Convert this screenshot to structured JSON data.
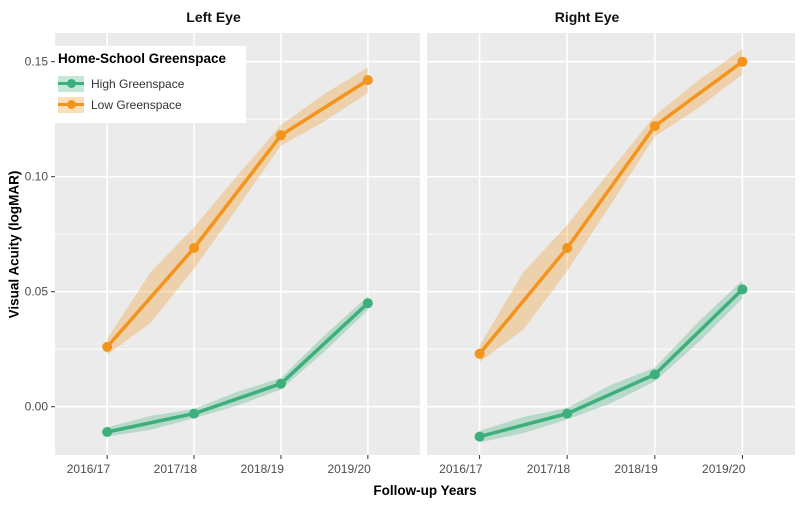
{
  "chart_data": {
    "type": "line",
    "facet_variable": "Eye",
    "xlabel": "Follow-up Years",
    "ylabel": "Visual Acuity (logMAR)",
    "categories": [
      "2016/17",
      "2017/18",
      "2018/19",
      "2019/20"
    ],
    "y_ticks": [
      {
        "value": 0.0,
        "label": "0.00"
      },
      {
        "value": 0.05,
        "label": "0.05"
      },
      {
        "value": 0.1,
        "label": "0.10"
      },
      {
        "value": 0.15,
        "label": "0.15"
      }
    ],
    "y_minor": [
      0.025,
      0.075,
      0.125
    ],
    "ylim": [
      -0.021,
      0.1625
    ],
    "grid": true,
    "legend": {
      "title": "Home-School Greenspace",
      "position": "top-left-inside",
      "items": [
        {
          "label": "High Greenspace",
          "color": "#3CAF7C"
        },
        {
          "label": "Low Greenspace",
          "color": "#F3941C"
        }
      ]
    },
    "facets": [
      {
        "title": "Left Eye",
        "series": [
          {
            "name": "High Greenspace",
            "color": "#3CAF7C",
            "values": [
              -0.011,
              -0.003,
              0.01,
              0.045
            ],
            "ci_half_width": [
              0.002,
              0.002,
              0.0025,
              0.003
            ],
            "ci_mid_half_width": [
              0.003,
              0.003,
              0.0035
            ]
          },
          {
            "name": "Low Greenspace",
            "color": "#F3941C",
            "values": [
              0.026,
              0.069,
              0.118,
              0.142
            ],
            "ci_half_width": [
              0.0035,
              0.009,
              0.0045,
              0.0055
            ],
            "ci_mid_half_width": [
              0.011,
              0.007,
              0.006
            ]
          }
        ]
      },
      {
        "title": "Right Eye",
        "series": [
          {
            "name": "High Greenspace",
            "color": "#3CAF7C",
            "values": [
              -0.013,
              -0.003,
              0.014,
              0.051
            ],
            "ci_half_width": [
              0.0025,
              0.0025,
              0.003,
              0.004
            ],
            "ci_mid_half_width": [
              0.0035,
              0.004,
              0.0045
            ]
          },
          {
            "name": "Low Greenspace",
            "color": "#F3941C",
            "values": [
              0.023,
              0.069,
              0.122,
              0.15
            ],
            "ci_half_width": [
              0.0035,
              0.01,
              0.0045,
              0.0055
            ],
            "ci_mid_half_width": [
              0.0125,
              0.0075,
              0.006
            ]
          }
        ]
      }
    ],
    "style": {
      "panel_background": "#EBEBEB",
      "gridline_color": "#FFFFFF",
      "axis_text_color": "#4D4D4D",
      "tick_mark_color": "#333333",
      "ribbon_opacity": 0.3
    }
  }
}
